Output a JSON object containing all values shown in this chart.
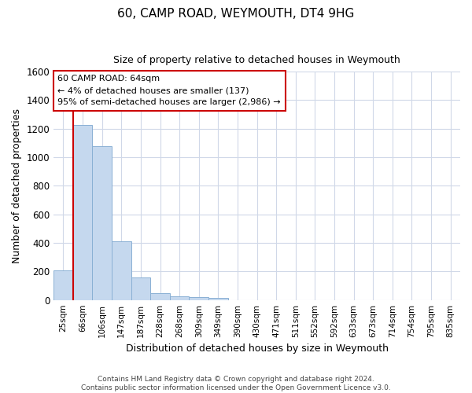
{
  "title": "60, CAMP ROAD, WEYMOUTH, DT4 9HG",
  "subtitle": "Size of property relative to detached houses in Weymouth",
  "xlabel": "Distribution of detached houses by size in Weymouth",
  "ylabel": "Number of detached properties",
  "bar_labels": [
    "25sqm",
    "66sqm",
    "106sqm",
    "147sqm",
    "187sqm",
    "228sqm",
    "268sqm",
    "309sqm",
    "349sqm",
    "390sqm",
    "430sqm",
    "471sqm",
    "511sqm",
    "552sqm",
    "592sqm",
    "633sqm",
    "673sqm",
    "714sqm",
    "754sqm",
    "795sqm",
    "835sqm"
  ],
  "bar_values": [
    205,
    1225,
    1075,
    410,
    160,
    50,
    27,
    20,
    17,
    0,
    0,
    0,
    0,
    0,
    0,
    0,
    0,
    0,
    0,
    0,
    0
  ],
  "bar_color": "#c5d8ee",
  "bar_edge_color": "#8ab0d4",
  "vline_color": "#cc0000",
  "ylim": [
    0,
    1600
  ],
  "yticks": [
    0,
    200,
    400,
    600,
    800,
    1000,
    1200,
    1400,
    1600
  ],
  "annotation_lines": [
    "60 CAMP ROAD: 64sqm",
    "← 4% of detached houses are smaller (137)",
    "95% of semi-detached houses are larger (2,986) →"
  ],
  "annotation_box_color": "#cc0000",
  "footnote1": "Contains HM Land Registry data © Crown copyright and database right 2024.",
  "footnote2": "Contains public sector information licensed under the Open Government Licence v3.0.",
  "plot_bg_color": "#ffffff",
  "grid_color": "#d0d8e8"
}
